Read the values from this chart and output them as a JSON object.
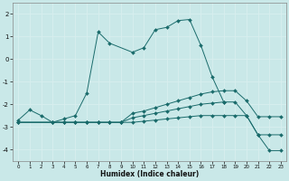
{
  "xlabel": "Humidex (Indice chaleur)",
  "background_color": "#c9e8e8",
  "grid_color": "#b0d0d0",
  "line_color": "#1a6b6b",
  "xlim": [
    -0.5,
    23.5
  ],
  "ylim": [
    -4.5,
    2.5
  ],
  "yticks": [
    -4,
    -3,
    -2,
    -1,
    0,
    1,
    2
  ],
  "xticks": [
    0,
    1,
    2,
    3,
    4,
    5,
    6,
    7,
    8,
    9,
    10,
    11,
    12,
    13,
    14,
    15,
    16,
    17,
    18,
    19,
    20,
    21,
    22,
    23
  ],
  "series1_x": [
    0,
    1,
    2,
    3,
    4,
    5,
    6,
    7,
    8,
    10,
    11,
    12,
    13,
    14,
    15,
    16,
    17,
    18
  ],
  "series1_y": [
    -2.7,
    -2.25,
    -2.5,
    -2.8,
    -2.65,
    -2.5,
    -1.5,
    1.2,
    0.7,
    0.3,
    0.5,
    1.3,
    1.4,
    1.7,
    1.75,
    0.6,
    -0.8,
    -1.9
  ],
  "series2_x": [
    0,
    3,
    4,
    5,
    6,
    7,
    8,
    9,
    10,
    11,
    12,
    13,
    14,
    15,
    16,
    17,
    18,
    19,
    20,
    21,
    22,
    23
  ],
  "series2_y": [
    -2.8,
    -2.8,
    -2.8,
    -2.8,
    -2.8,
    -2.8,
    -2.8,
    -2.8,
    -2.4,
    -2.3,
    -2.15,
    -2.0,
    -1.85,
    -1.7,
    -1.55,
    -1.45,
    -1.4,
    -1.4,
    -1.85,
    -2.55,
    -2.55,
    -2.55
  ],
  "series3_x": [
    0,
    3,
    4,
    5,
    6,
    7,
    8,
    9,
    10,
    11,
    12,
    13,
    14,
    15,
    16,
    17,
    18,
    19,
    20,
    21,
    22,
    23
  ],
  "series3_y": [
    -2.8,
    -2.8,
    -2.8,
    -2.8,
    -2.8,
    -2.8,
    -2.8,
    -2.8,
    -2.6,
    -2.5,
    -2.4,
    -2.3,
    -2.2,
    -2.1,
    -2.0,
    -1.95,
    -1.9,
    -1.9,
    -2.5,
    -3.35,
    -3.35,
    -3.35
  ],
  "series4_x": [
    0,
    3,
    4,
    5,
    6,
    7,
    8,
    9,
    10,
    11,
    12,
    13,
    14,
    15,
    16,
    17,
    18,
    19,
    20,
    21,
    22,
    23
  ],
  "series4_y": [
    -2.8,
    -2.8,
    -2.8,
    -2.8,
    -2.8,
    -2.8,
    -2.8,
    -2.8,
    -2.8,
    -2.75,
    -2.7,
    -2.65,
    -2.6,
    -2.55,
    -2.5,
    -2.5,
    -2.5,
    -2.5,
    -2.5,
    -3.35,
    -4.05,
    -4.05
  ]
}
